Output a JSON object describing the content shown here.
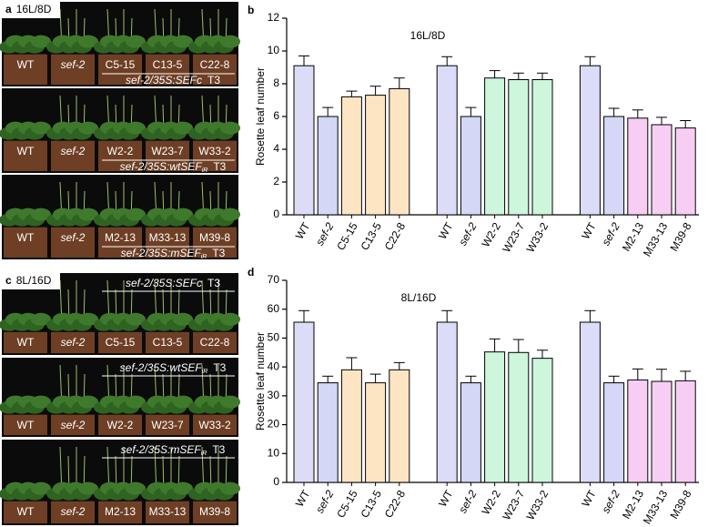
{
  "photos": [
    {
      "panel": "a",
      "condition": "16L/8D",
      "rows": [
        {
          "pots": [
            {
              "label": "WT",
              "italic": false
            },
            {
              "label": "sef-2",
              "italic": true
            },
            {
              "label": "C5-15",
              "italic": false
            },
            {
              "label": "C13-5",
              "italic": false
            },
            {
              "label": "C22-8",
              "italic": false
            }
          ],
          "construct": {
            "text": "sef-2/35S:SEFc",
            "sub": null,
            "tag": "T3"
          }
        },
        {
          "pots": [
            {
              "label": "WT",
              "italic": false
            },
            {
              "label": "sef-2",
              "italic": true
            },
            {
              "label": "W2-2",
              "italic": false
            },
            {
              "label": "W23-7",
              "italic": false
            },
            {
              "label": "W33-2",
              "italic": false
            }
          ],
          "construct": {
            "text": "sef-2/35S:wtSEF",
            "sub": "iR",
            "tag": "T3"
          }
        },
        {
          "pots": [
            {
              "label": "WT",
              "italic": false
            },
            {
              "label": "sef-2",
              "italic": true
            },
            {
              "label": "M2-13",
              "italic": false
            },
            {
              "label": "M33-13",
              "italic": false
            },
            {
              "label": "M39-8",
              "italic": false
            }
          ],
          "construct": {
            "text": "sef-2/35S:mSEF",
            "sub": "iR",
            "tag": "T3"
          }
        }
      ]
    },
    {
      "panel": "c",
      "condition": "8L/16D",
      "rows": [
        {
          "pots": [
            {
              "label": "WT",
              "italic": false
            },
            {
              "label": "sef-2",
              "italic": true
            },
            {
              "label": "C5-15",
              "italic": false
            },
            {
              "label": "C13-5",
              "italic": false
            },
            {
              "label": "C22-8",
              "italic": false
            }
          ],
          "construct": {
            "text": "sef-2/35S:SEFc",
            "sub": null,
            "tag": "T3"
          }
        },
        {
          "pots": [
            {
              "label": "WT",
              "italic": false
            },
            {
              "label": "sef-2",
              "italic": true
            },
            {
              "label": "W2-2",
              "italic": false
            },
            {
              "label": "W23-7",
              "italic": false
            },
            {
              "label": "W33-2",
              "italic": false
            }
          ],
          "construct": {
            "text": "sef-2/35S:wtSEF",
            "sub": "iR",
            "tag": "T3"
          }
        },
        {
          "pots": [
            {
              "label": "WT",
              "italic": false
            },
            {
              "label": "sef-2",
              "italic": true
            },
            {
              "label": "M2-13",
              "italic": false
            },
            {
              "label": "M33-13",
              "italic": false
            },
            {
              "label": "M39-8",
              "italic": false
            }
          ],
          "construct": {
            "text": "sef-2/35S:mSEF",
            "sub": "iR",
            "tag": "T3"
          }
        }
      ]
    }
  ],
  "chart_data": [
    {
      "type": "bar",
      "panel": "b",
      "annotation": "16L/8D",
      "y_label": "Rosette leaf number",
      "categories": [
        "WT",
        "sef-2",
        "C5-15",
        "C13-5",
        "C22-8",
        null,
        "WT",
        "sef-2",
        "W2-2",
        "W23-7",
        "W33-2",
        null,
        "WT",
        "sef-2",
        "M2-13",
        "M33-13",
        "M39-8"
      ],
      "category_italic": [
        false,
        true,
        false,
        false,
        false,
        null,
        false,
        true,
        false,
        false,
        false,
        null,
        false,
        true,
        false,
        false,
        false
      ],
      "values": [
        9.1,
        6.0,
        7.2,
        7.3,
        7.7,
        null,
        9.1,
        6.0,
        8.35,
        8.25,
        8.25,
        null,
        9.1,
        6.0,
        5.9,
        5.5,
        5.3
      ],
      "errors": [
        0.6,
        0.55,
        0.35,
        0.55,
        0.65,
        null,
        0.55,
        0.55,
        0.45,
        0.4,
        0.4,
        null,
        0.55,
        0.5,
        0.5,
        0.45,
        0.45
      ],
      "colors": [
        "#dcdcf8",
        "#d4d7f6",
        "#fde5c4",
        "#fde5c4",
        "#fde5c4",
        null,
        "#dcdcf8",
        "#d4d7f6",
        "#cdf6dc",
        "#cdf6dc",
        "#cdf6dc",
        null,
        "#dcdcf8",
        "#d4d7f6",
        "#f8cdf4",
        "#f8cdf4",
        "#f8cdf4"
      ],
      "ylim": [
        0,
        12
      ],
      "yticks": [
        0,
        2,
        4,
        6,
        8,
        10,
        12
      ]
    },
    {
      "type": "bar",
      "panel": "d",
      "annotation": "8L/16D",
      "y_label": "Rosette leaf number",
      "categories": [
        "WT",
        "sef-2",
        "C5-15",
        "C13-5",
        "C22-8",
        null,
        "WT",
        "sef-2",
        "W2-2",
        "W23-7",
        "W33-2",
        null,
        "WT",
        "sef-2",
        "M2-13",
        "M33-13",
        "M39-8"
      ],
      "category_italic": [
        false,
        true,
        false,
        false,
        false,
        null,
        false,
        true,
        false,
        false,
        false,
        null,
        false,
        true,
        false,
        false,
        false
      ],
      "values": [
        55.5,
        34.5,
        39,
        34.5,
        39,
        null,
        55.5,
        34.5,
        45.2,
        45,
        43,
        null,
        55.5,
        34.5,
        35.5,
        35,
        35.2
      ],
      "errors": [
        4,
        2.3,
        4.2,
        3,
        2.5,
        null,
        4,
        2.3,
        4.5,
        4.5,
        2.8,
        null,
        4,
        2.3,
        3.8,
        4.2,
        3.3
      ],
      "colors": [
        "#dcdcf8",
        "#d4d7f6",
        "#fde5c4",
        "#fde5c4",
        "#fde5c4",
        null,
        "#dcdcf8",
        "#d4d7f6",
        "#cdf6dc",
        "#cdf6dc",
        "#cdf6dc",
        null,
        "#dcdcf8",
        "#d4d7f6",
        "#f8cdf4",
        "#f8cdf4",
        "#f8cdf4"
      ],
      "ylim": [
        0,
        70
      ],
      "yticks": [
        0,
        10,
        20,
        30,
        40,
        50,
        60,
        70
      ]
    }
  ]
}
